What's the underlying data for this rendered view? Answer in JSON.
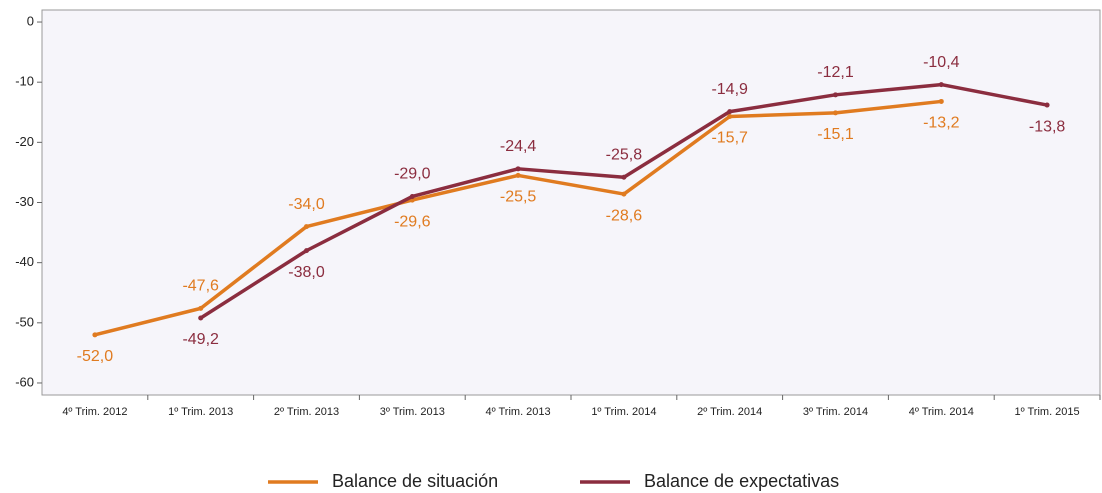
{
  "chart_data": {
    "type": "line",
    "categories": [
      "4º Trim. 2012",
      "1º Trim. 2013",
      "2º Trim. 2013",
      "3º Trim. 2013",
      "4º Trim. 2013",
      "1º Trim. 2014",
      "2º Trim. 2014",
      "3º Trim. 2014",
      "4º Trim. 2014",
      "1º Trim. 2015"
    ],
    "series": [
      {
        "name": "Balance de situación",
        "color": "#e07b20",
        "values": [
          -52.0,
          -47.6,
          -34.0,
          -29.6,
          -25.5,
          -28.6,
          -15.7,
          -15.1,
          -13.2,
          null
        ],
        "value_labels": [
          "-52,0",
          "-47,6",
          "-34,0",
          "-29,6",
          "-25,5",
          "-28,6",
          "-15,7",
          "-15,1",
          "-13,2",
          null
        ]
      },
      {
        "name": "Balance de expectativas",
        "color": "#8b2d3f",
        "values": [
          null,
          -49.2,
          -38.0,
          -29.0,
          -24.4,
          -25.8,
          -14.9,
          -12.1,
          -10.4,
          -13.8
        ],
        "value_labels": [
          null,
          "-49,2",
          "-38,0",
          "-29,0",
          "-24,4",
          "-25,8",
          "-14,9",
          "-12,1",
          "-10,4",
          "-13,8"
        ]
      }
    ],
    "ylim": [
      -62,
      2
    ],
    "yticks": [
      0,
      -10,
      -20,
      -30,
      -40,
      -50,
      -60
    ],
    "legend": "bottom"
  }
}
